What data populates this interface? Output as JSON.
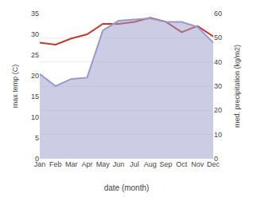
{
  "chart_data": {
    "type": "line",
    "categories": [
      "Jan",
      "Feb",
      "Mar",
      "Apr",
      "May",
      "Jun",
      "Jul",
      "Aug",
      "Sep",
      "Oct",
      "Nov",
      "Dec"
    ],
    "xlabel": "date (month)",
    "ylabel": "max temp (C)",
    "y2label": "med. precipitation (kg/m2)",
    "series": [
      {
        "type": "area",
        "axis": "y2",
        "color": "#9999cc",
        "values": [
          35.0,
          30.0,
          33.0,
          33.5,
          53.0,
          57.0,
          57.5,
          58.0,
          56.5,
          56.5,
          54.5,
          48.0
        ]
      },
      {
        "type": "line",
        "axis": "y",
        "color": "#c0392b",
        "values": [
          28.0,
          27.5,
          29.0,
          30.0,
          32.5,
          32.5,
          33.0,
          34.0,
          33.0,
          30.5,
          32.0,
          29.5
        ]
      }
    ],
    "ylim": [
      0,
      35
    ],
    "yticks": [
      0,
      5,
      10,
      15,
      20,
      25,
      30,
      35
    ],
    "y2lim": [
      0,
      60
    ],
    "y2ticks": [
      0,
      10,
      20,
      30,
      40,
      50,
      60
    ],
    "grid": true
  }
}
